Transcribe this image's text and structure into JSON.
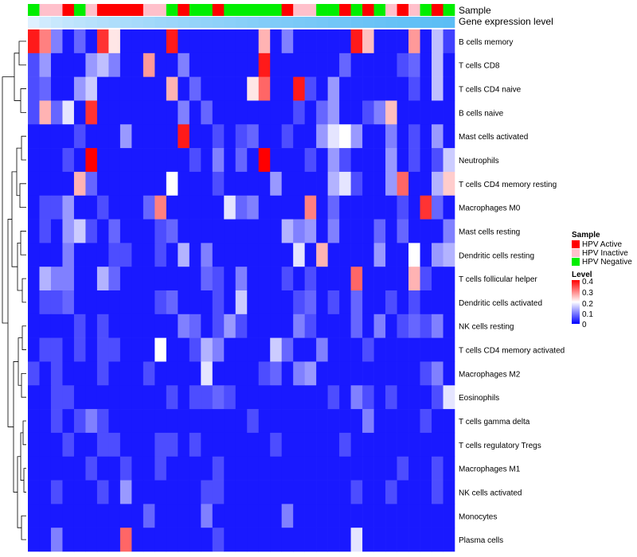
{
  "chart_data": {
    "type": "heatmap",
    "annotation_rows": {
      "sample_label": "Sample",
      "gene_label": "Gene expression level"
    },
    "legend": {
      "sample_title": "Sample",
      "sample_groups": [
        {
          "name": "HPV Active",
          "color": "#ff0000"
        },
        {
          "name": "HPV Inactive",
          "color": "#ffc0cb"
        },
        {
          "name": "HPV Negative",
          "color": "#00ee00"
        }
      ],
      "level_title": "Level",
      "level_ticks": [
        "0.4",
        "0.3",
        "0.2",
        "0.1",
        "0"
      ],
      "level_range": [
        0,
        0.4
      ]
    },
    "colors": {
      "low": "#0000ff",
      "mid": "#ffffff",
      "high": "#ff0000",
      "gene_bar_light": "#dff1ff",
      "gene_bar_dark": "#5bbdf5"
    },
    "samples": [
      "g",
      "p",
      "p",
      "r",
      "g",
      "p",
      "r",
      "r",
      "r",
      "r",
      "p",
      "p",
      "g",
      "r",
      "g",
      "g",
      "r",
      "g",
      "g",
      "g",
      "g",
      "g",
      "r",
      "p",
      "p",
      "g",
      "g",
      "r",
      "g",
      "r",
      "g",
      "p",
      "r",
      "p",
      "g",
      "r",
      "g"
    ],
    "rows": [
      "B cells memory",
      "T cells CD8",
      "T cells CD4 naive",
      "B cells naive",
      "Mast cells activated",
      "Neutrophils",
      "T cells CD4 memory resting",
      "Macrophages M0",
      "Mast cells resting",
      "Dendritic cells resting",
      "T cells follicular helper",
      "Dendritic cells activated",
      "NK cells resting",
      "T cells CD4 memory activated",
      "Macrophages M2",
      "Eosinophils",
      "T cells gamma delta",
      "T cells regulatory  Tregs",
      "Macrophages M1",
      "NK cells activated",
      "Monocytes",
      "Plasma cells"
    ],
    "values": [
      [
        0.38,
        0.3,
        0.1,
        0.02,
        0.08,
        0.02,
        0.36,
        0.22,
        0.02,
        0.02,
        0.02,
        0.02,
        0.38,
        0.02,
        0.02,
        0.02,
        0.02,
        0.02,
        0.02,
        0.02,
        0.26,
        0.02,
        0.1,
        0.02,
        0.02,
        0.02,
        0.02,
        0.02,
        0.38,
        0.25,
        0.02,
        0.02,
        0.02,
        0.28,
        0.02,
        0.15,
        0.05
      ],
      [
        0.06,
        0.12,
        0.02,
        0.02,
        0.02,
        0.12,
        0.15,
        0.1,
        0.02,
        0.02,
        0.28,
        0.02,
        0.02,
        0.1,
        0.02,
        0.02,
        0.02,
        0.02,
        0.02,
        0.02,
        0.38,
        0.02,
        0.02,
        0.02,
        0.02,
        0.02,
        0.02,
        0.08,
        0.02,
        0.02,
        0.02,
        0.02,
        0.06,
        0.08,
        0.02,
        0.15,
        0.02
      ],
      [
        0.06,
        0.08,
        0.02,
        0.02,
        0.12,
        0.16,
        0.02,
        0.02,
        0.02,
        0.02,
        0.02,
        0.02,
        0.26,
        0.02,
        0.08,
        0.02,
        0.02,
        0.02,
        0.02,
        0.22,
        0.32,
        0.02,
        0.02,
        0.38,
        0.06,
        0.02,
        0.12,
        0.02,
        0.02,
        0.02,
        0.02,
        0.02,
        0.02,
        0.06,
        0.02,
        0.15,
        0.02
      ],
      [
        0.06,
        0.26,
        0.08,
        0.18,
        0.02,
        0.36,
        0.02,
        0.02,
        0.02,
        0.02,
        0.02,
        0.02,
        0.02,
        0.1,
        0.02,
        0.08,
        0.02,
        0.02,
        0.02,
        0.02,
        0.02,
        0.02,
        0.02,
        0.06,
        0.02,
        0.08,
        0.12,
        0.02,
        0.02,
        0.06,
        0.1,
        0.25,
        0.02,
        0.02,
        0.02,
        0.02,
        0.02
      ],
      [
        0.02,
        0.02,
        0.02,
        0.02,
        0.06,
        0.02,
        0.02,
        0.02,
        0.12,
        0.02,
        0.02,
        0.02,
        0.02,
        0.38,
        0.02,
        0.02,
        0.06,
        0.02,
        0.06,
        0.08,
        0.02,
        0.02,
        0.06,
        0.02,
        0.02,
        0.12,
        0.18,
        0.2,
        0.12,
        0.02,
        0.02,
        0.1,
        0.02,
        0.06,
        0.02,
        0.12,
        0.02
      ],
      [
        0.02,
        0.02,
        0.02,
        0.06,
        0.02,
        0.4,
        0.02,
        0.02,
        0.02,
        0.02,
        0.02,
        0.02,
        0.02,
        0.02,
        0.06,
        0.02,
        0.1,
        0.02,
        0.08,
        0.02,
        0.4,
        0.02,
        0.02,
        0.02,
        0.06,
        0.02,
        0.12,
        0.06,
        0.02,
        0.02,
        0.02,
        0.12,
        0.02,
        0.06,
        0.02,
        0.06,
        0.16
      ],
      [
        0.02,
        0.02,
        0.02,
        0.02,
        0.26,
        0.08,
        0.02,
        0.02,
        0.02,
        0.02,
        0.02,
        0.02,
        0.2,
        0.02,
        0.02,
        0.02,
        0.06,
        0.02,
        0.02,
        0.02,
        0.02,
        0.12,
        0.02,
        0.02,
        0.02,
        0.02,
        0.14,
        0.18,
        0.06,
        0.02,
        0.02,
        0.12,
        0.32,
        0.02,
        0.02,
        0.14,
        0.24
      ],
      [
        0.02,
        0.06,
        0.06,
        0.12,
        0.02,
        0.02,
        0.06,
        0.02,
        0.02,
        0.02,
        0.08,
        0.3,
        0.02,
        0.02,
        0.02,
        0.02,
        0.02,
        0.18,
        0.08,
        0.1,
        0.02,
        0.02,
        0.02,
        0.02,
        0.3,
        0.02,
        0.08,
        0.02,
        0.02,
        0.02,
        0.02,
        0.02,
        0.06,
        0.02,
        0.36,
        0.08,
        0.02
      ],
      [
        0.02,
        0.06,
        0.02,
        0.12,
        0.16,
        0.06,
        0.02,
        0.08,
        0.02,
        0.02,
        0.02,
        0.06,
        0.08,
        0.02,
        0.02,
        0.02,
        0.02,
        0.02,
        0.02,
        0.02,
        0.02,
        0.02,
        0.14,
        0.1,
        0.12,
        0.02,
        0.1,
        0.02,
        0.02,
        0.02,
        0.08,
        0.02,
        0.08,
        0.02,
        0.02,
        0.02,
        0.1
      ],
      [
        0.02,
        0.02,
        0.02,
        0.1,
        0.02,
        0.02,
        0.02,
        0.06,
        0.06,
        0.02,
        0.02,
        0.06,
        0.02,
        0.14,
        0.02,
        0.1,
        0.02,
        0.02,
        0.02,
        0.02,
        0.02,
        0.02,
        0.02,
        0.18,
        0.02,
        0.26,
        0.02,
        0.02,
        0.02,
        0.02,
        0.12,
        0.02,
        0.02,
        0.2,
        0.02,
        0.12,
        0.14
      ],
      [
        0.02,
        0.14,
        0.1,
        0.1,
        0.02,
        0.02,
        0.14,
        0.08,
        0.02,
        0.02,
        0.02,
        0.02,
        0.02,
        0.02,
        0.02,
        0.08,
        0.06,
        0.02,
        0.1,
        0.02,
        0.02,
        0.02,
        0.06,
        0.02,
        0.06,
        0.02,
        0.02,
        0.02,
        0.32,
        0.02,
        0.02,
        0.02,
        0.02,
        0.26,
        0.06,
        0.02,
        0.02
      ],
      [
        0.02,
        0.06,
        0.06,
        0.08,
        0.02,
        0.02,
        0.02,
        0.02,
        0.02,
        0.02,
        0.02,
        0.06,
        0.08,
        0.02,
        0.02,
        0.02,
        0.06,
        0.02,
        0.16,
        0.02,
        0.02,
        0.02,
        0.02,
        0.06,
        0.08,
        0.02,
        0.06,
        0.02,
        0.08,
        0.02,
        0.02,
        0.06,
        0.02,
        0.06,
        0.02,
        0.02,
        0.02
      ],
      [
        0.02,
        0.02,
        0.02,
        0.02,
        0.06,
        0.02,
        0.06,
        0.02,
        0.02,
        0.02,
        0.02,
        0.02,
        0.02,
        0.1,
        0.08,
        0.02,
        0.06,
        0.12,
        0.06,
        0.02,
        0.02,
        0.02,
        0.02,
        0.1,
        0.06,
        0.02,
        0.02,
        0.02,
        0.08,
        0.02,
        0.1,
        0.02,
        0.06,
        0.08,
        0.06,
        0.1,
        0.02
      ],
      [
        0.02,
        0.06,
        0.06,
        0.02,
        0.06,
        0.02,
        0.06,
        0.06,
        0.02,
        0.02,
        0.02,
        0.2,
        0.02,
        0.02,
        0.06,
        0.14,
        0.1,
        0.02,
        0.02,
        0.02,
        0.02,
        0.16,
        0.08,
        0.02,
        0.02,
        0.1,
        0.02,
        0.02,
        0.02,
        0.06,
        0.02,
        0.02,
        0.02,
        0.02,
        0.02,
        0.02,
        0.02
      ],
      [
        0.06,
        0.02,
        0.06,
        0.02,
        0.02,
        0.02,
        0.06,
        0.02,
        0.02,
        0.02,
        0.06,
        0.02,
        0.02,
        0.02,
        0.02,
        0.18,
        0.02,
        0.02,
        0.02,
        0.02,
        0.06,
        0.08,
        0.02,
        0.1,
        0.12,
        0.02,
        0.02,
        0.02,
        0.02,
        0.02,
        0.02,
        0.02,
        0.02,
        0.02,
        0.06,
        0.1,
        0.02
      ],
      [
        0.02,
        0.02,
        0.06,
        0.06,
        0.02,
        0.02,
        0.02,
        0.02,
        0.02,
        0.02,
        0.02,
        0.02,
        0.06,
        0.02,
        0.06,
        0.06,
        0.08,
        0.06,
        0.02,
        0.02,
        0.02,
        0.02,
        0.02,
        0.02,
        0.02,
        0.02,
        0.06,
        0.02,
        0.1,
        0.06,
        0.02,
        0.06,
        0.02,
        0.02,
        0.02,
        0.06,
        0.18
      ],
      [
        0.02,
        0.02,
        0.06,
        0.02,
        0.06,
        0.1,
        0.06,
        0.02,
        0.02,
        0.02,
        0.02,
        0.02,
        0.02,
        0.02,
        0.02,
        0.02,
        0.02,
        0.02,
        0.02,
        0.06,
        0.02,
        0.02,
        0.02,
        0.02,
        0.02,
        0.02,
        0.02,
        0.02,
        0.02,
        0.1,
        0.02,
        0.02,
        0.02,
        0.02,
        0.06,
        0.02,
        0.02
      ],
      [
        0.02,
        0.02,
        0.02,
        0.06,
        0.02,
        0.02,
        0.06,
        0.06,
        0.02,
        0.02,
        0.02,
        0.06,
        0.06,
        0.02,
        0.06,
        0.02,
        0.02,
        0.02,
        0.02,
        0.02,
        0.02,
        0.06,
        0.02,
        0.02,
        0.02,
        0.02,
        0.02,
        0.06,
        0.02,
        0.02,
        0.02,
        0.02,
        0.02,
        0.02,
        0.02,
        0.02,
        0.02
      ],
      [
        0.02,
        0.02,
        0.02,
        0.02,
        0.02,
        0.06,
        0.02,
        0.02,
        0.06,
        0.02,
        0.02,
        0.06,
        0.02,
        0.02,
        0.02,
        0.02,
        0.06,
        0.02,
        0.02,
        0.02,
        0.02,
        0.02,
        0.02,
        0.02,
        0.02,
        0.02,
        0.02,
        0.02,
        0.02,
        0.02,
        0.02,
        0.02,
        0.06,
        0.02,
        0.02,
        0.06,
        0.02
      ],
      [
        0.02,
        0.02,
        0.06,
        0.02,
        0.02,
        0.02,
        0.06,
        0.02,
        0.12,
        0.02,
        0.02,
        0.02,
        0.02,
        0.02,
        0.02,
        0.06,
        0.06,
        0.02,
        0.02,
        0.02,
        0.02,
        0.02,
        0.02,
        0.02,
        0.02,
        0.02,
        0.02,
        0.02,
        0.06,
        0.02,
        0.02,
        0.06,
        0.02,
        0.02,
        0.02,
        0.06,
        0.02
      ],
      [
        0.02,
        0.02,
        0.02,
        0.02,
        0.02,
        0.02,
        0.02,
        0.02,
        0.02,
        0.02,
        0.08,
        0.02,
        0.02,
        0.02,
        0.02,
        0.1,
        0.02,
        0.02,
        0.02,
        0.02,
        0.02,
        0.02,
        0.1,
        0.02,
        0.02,
        0.02,
        0.02,
        0.02,
        0.02,
        0.02,
        0.02,
        0.02,
        0.02,
        0.02,
        0.02,
        0.02,
        0.02
      ],
      [
        0.02,
        0.02,
        0.1,
        0.02,
        0.02,
        0.02,
        0.02,
        0.02,
        0.32,
        0.02,
        0.02,
        0.02,
        0.02,
        0.02,
        0.02,
        0.02,
        0.06,
        0.02,
        0.02,
        0.02,
        0.02,
        0.02,
        0.02,
        0.02,
        0.02,
        0.02,
        0.02,
        0.02,
        0.18,
        0.02,
        0.02,
        0.02,
        0.02,
        0.02,
        0.02,
        0.02,
        0.02
      ]
    ]
  }
}
